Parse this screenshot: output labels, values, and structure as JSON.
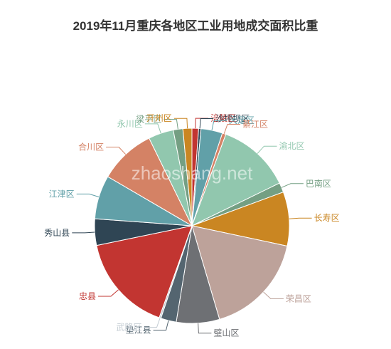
{
  "chart_data": {
    "type": "pie",
    "title": "2019年11月重庆各地区工业用地成交面积比重",
    "watermark": "zhaoshang.net",
    "slices": [
      {
        "name": "涪陵区",
        "value": 1.1,
        "color": "#c23531"
      },
      {
        "name": "沙坪坝区",
        "value": 0.4,
        "color": "#2f4554"
      },
      {
        "name": "大足区",
        "value": 3.6,
        "color": "#61a0a8"
      },
      {
        "name": "綦江区",
        "value": 0.6,
        "color": "#d48265"
      },
      {
        "name": "渝北区",
        "value": 12.2,
        "color": "#91c7ae"
      },
      {
        "name": "巴南区",
        "value": 1.6,
        "color": "#749f83"
      },
      {
        "name": "长寿区",
        "value": 9.0,
        "color": "#ca8622"
      },
      {
        "name": "荣昌区",
        "value": 17.2,
        "color": "#bda29a"
      },
      {
        "name": "璧山区",
        "value": 7.2,
        "color": "#6e7074"
      },
      {
        "name": "垫江县",
        "value": 2.6,
        "color": "#546570"
      },
      {
        "name": "武隆区",
        "value": 0.3,
        "color": "#c4ccd3"
      },
      {
        "name": "忠县",
        "value": 16.4,
        "color": "#c23531"
      },
      {
        "name": "秀山县",
        "value": 4.4,
        "color": "#2f4554"
      },
      {
        "name": "江津区",
        "value": 7.3,
        "color": "#61a0a8"
      },
      {
        "name": "合川区",
        "value": 9.4,
        "color": "#d48265"
      },
      {
        "name": "永川区",
        "value": 4.2,
        "color": "#91c7ae"
      },
      {
        "name": "梁平区",
        "value": 1.6,
        "color": "#749f83"
      },
      {
        "name": "开州区",
        "value": 1.5,
        "color": "#ca8622"
      }
    ]
  }
}
